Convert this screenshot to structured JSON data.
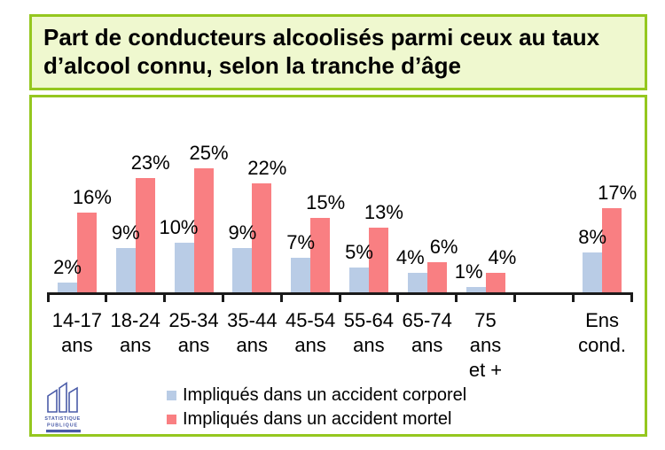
{
  "title": {
    "line1": "Part de conducteurs alcoolisés parmi ceux au taux",
    "line2": "d’alcool connu, selon la tranche d’âge"
  },
  "chart_data": {
    "type": "bar",
    "title": "Part de conducteurs alcoolisés parmi ceux au taux d’alcool connu, selon la tranche d’âge",
    "categories": [
      "14-17 ans",
      "18-24 ans",
      "25-34 ans",
      "35-44 ans",
      "45-54 ans",
      "55-64 ans",
      "65-74 ans",
      "75 ans et +",
      "Ens cond."
    ],
    "category_label_lines": [
      [
        "14-17",
        "ans"
      ],
      [
        "18-24",
        "ans"
      ],
      [
        "25-34",
        "ans"
      ],
      [
        "35-44",
        "ans"
      ],
      [
        "45-54",
        "ans"
      ],
      [
        "55-64",
        "ans"
      ],
      [
        "65-74",
        "ans"
      ],
      [
        "75",
        "ans",
        "et +"
      ],
      [
        "Ens",
        "cond."
      ]
    ],
    "series": [
      {
        "name": "Impliqués dans un accident corporel",
        "color": "#B9CCE6",
        "values": [
          2,
          9,
          10,
          9,
          7,
          5,
          4,
          1,
          8
        ]
      },
      {
        "name": "Impliqués dans un accident mortel",
        "color": "#F97F82",
        "values": [
          16,
          23,
          25,
          22,
          15,
          13,
          6,
          4,
          17
        ]
      }
    ],
    "value_suffix": "%",
    "ylim": [
      0,
      27
    ],
    "grid": false,
    "legend_position": "bottom-inside",
    "layout_hints": {
      "category_slots": [
        0,
        1,
        2,
        3,
        4,
        5,
        6,
        7,
        9
      ],
      "num_slots": 10,
      "gap_before_total": true
    }
  },
  "logo": {
    "line1": "STATISTIQUE",
    "line2": "PUBLIQUE"
  },
  "colors": {
    "panel_border": "#95C71F",
    "title_bg": "#EFF8CF",
    "axis": "#1A1A1A",
    "bar_blue": "#B9CCE6",
    "bar_red": "#F97F82",
    "logo_blue": "#4A5BA8"
  }
}
